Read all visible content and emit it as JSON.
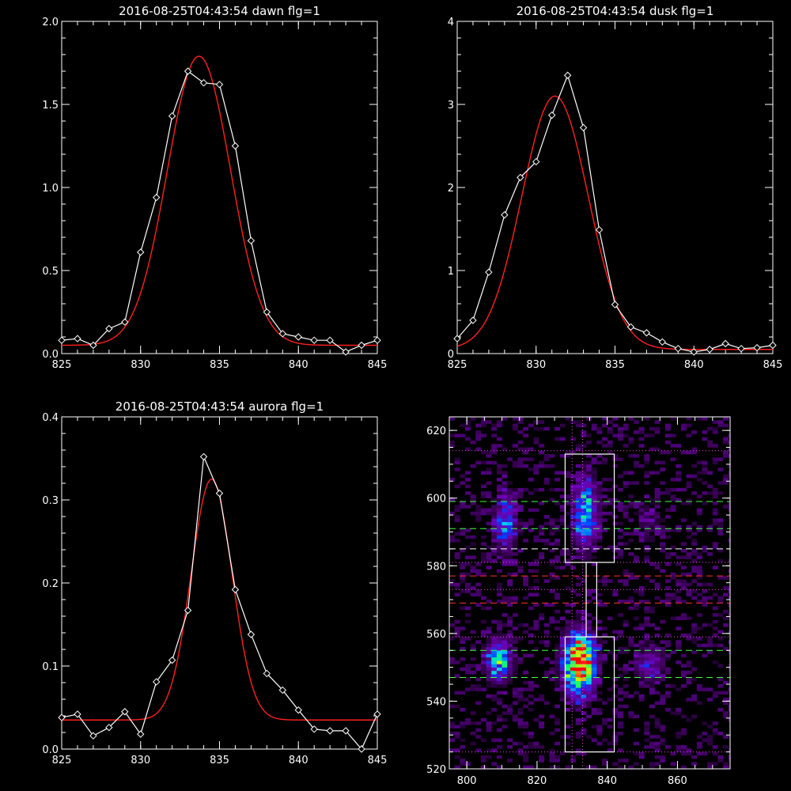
{
  "chart_data": [
    {
      "type": "line",
      "title": "2016-08-25T04:43:54 dawn flg=1",
      "xlim": [
        825,
        845
      ],
      "ylim": [
        0,
        2.0
      ],
      "xticks": [
        825,
        830,
        835,
        840,
        845
      ],
      "yticks": [
        0.0,
        0.5,
        1.0,
        1.5,
        2.0
      ],
      "ytick_labels": [
        "0.0",
        "0.5",
        "1.0",
        "1.5",
        "2.0"
      ],
      "series": [
        {
          "color": "#ffffff",
          "markers": "diamond",
          "x": [
            825,
            826,
            827,
            828,
            829,
            830,
            831,
            832,
            833,
            834,
            835,
            836,
            837,
            838,
            839,
            840,
            841,
            842,
            843,
            844,
            845
          ],
          "y": [
            0.08,
            0.09,
            0.05,
            0.15,
            0.19,
            0.61,
            0.94,
            1.43,
            1.7,
            1.63,
            1.62,
            1.25,
            0.68,
            0.25,
            0.12,
            0.1,
            0.08,
            0.08,
            0.01,
            0.05,
            0.08
          ]
        },
        {
          "color": "#ff2020",
          "markers": "none",
          "fit": {
            "baseline": 0.05,
            "amplitude": 1.74,
            "center": 833.7,
            "sigma": 2.0
          }
        }
      ]
    },
    {
      "type": "line",
      "title": "2016-08-25T04:43:54 dusk flg=1",
      "xlim": [
        825,
        845
      ],
      "ylim": [
        0,
        4
      ],
      "xticks": [
        825,
        830,
        835,
        840,
        845
      ],
      "yticks": [
        0,
        1,
        2,
        3,
        4
      ],
      "ytick_labels": [
        "0",
        "1",
        "2",
        "3",
        "4"
      ],
      "series": [
        {
          "color": "#ffffff",
          "markers": "diamond",
          "x": [
            825,
            826,
            827,
            828,
            829,
            830,
            831,
            832,
            833,
            834,
            835,
            836,
            837,
            838,
            839,
            840,
            841,
            842,
            843,
            844,
            845
          ],
          "y": [
            0.18,
            0.4,
            0.98,
            1.67,
            2.12,
            2.31,
            2.87,
            3.35,
            2.72,
            1.49,
            0.59,
            0.32,
            0.25,
            0.14,
            0.06,
            0.02,
            0.05,
            0.12,
            0.06,
            0.07,
            0.1
          ]
        },
        {
          "color": "#ff2020",
          "markers": "none",
          "fit": {
            "baseline": 0.05,
            "amplitude": 3.05,
            "center": 831.2,
            "sigma": 2.1
          }
        }
      ]
    },
    {
      "type": "line",
      "title": "2016-08-25T04:43:54 aurora flg=1",
      "xlim": [
        825,
        845
      ],
      "ylim": [
        0,
        0.4
      ],
      "xticks": [
        825,
        830,
        835,
        840,
        845
      ],
      "yticks": [
        0.0,
        0.1,
        0.2,
        0.3,
        0.4
      ],
      "ytick_labels": [
        "0.0",
        "0.1",
        "0.2",
        "0.3",
        "0.4"
      ],
      "series": [
        {
          "color": "#ffffff",
          "markers": "diamond",
          "x": [
            825,
            826,
            827,
            828,
            829,
            830,
            831,
            832,
            833,
            834,
            835,
            836,
            837,
            838,
            839,
            840,
            841,
            842,
            843,
            844,
            845
          ],
          "y": [
            0.038,
            0.042,
            0.016,
            0.026,
            0.045,
            0.018,
            0.081,
            0.107,
            0.167,
            0.352,
            0.308,
            0.192,
            0.138,
            0.091,
            0.071,
            0.047,
            0.024,
            0.022,
            0.022,
            0.0,
            0.042
          ]
        },
        {
          "color": "#ff2020",
          "markers": "none",
          "fit": {
            "baseline": 0.035,
            "amplitude": 0.29,
            "center": 834.5,
            "sigma": 1.3
          }
        }
      ]
    },
    {
      "type": "heatmap",
      "title": "",
      "xlim": [
        795,
        875
      ],
      "ylim": [
        520,
        624
      ],
      "xticks": [
        800,
        820,
        840,
        860
      ],
      "yticks": [
        520,
        540,
        560,
        580,
        600,
        620
      ],
      "blobs": [
        {
          "x": 832,
          "y": 551,
          "sx": 3.0,
          "sy": 6,
          "amp": 1.0
        },
        {
          "x": 833,
          "y": 554,
          "sx": 2.0,
          "sy": 3,
          "amp": 0.35
        },
        {
          "x": 809,
          "y": 552,
          "sx": 2.5,
          "sy": 4,
          "amp": 0.55
        },
        {
          "x": 834,
          "y": 596,
          "sx": 2.5,
          "sy": 7,
          "amp": 0.55
        },
        {
          "x": 811,
          "y": 593,
          "sx": 2.2,
          "sy": 6,
          "amp": 0.4
        },
        {
          "x": 852,
          "y": 551,
          "sx": 3.0,
          "sy": 4,
          "amp": 0.25
        },
        {
          "x": 852,
          "y": 593,
          "sx": 3.0,
          "sy": 5,
          "amp": 0.12
        }
      ],
      "boxes": [
        {
          "x0": 828,
          "x1": 842,
          "y0": 581,
          "y1": 613,
          "color": "#ffffff"
        },
        {
          "x0": 828,
          "x1": 842,
          "y0": 525,
          "y1": 559,
          "color": "#ffffff"
        },
        {
          "x0": 834,
          "x1": 837,
          "y0": 559,
          "y1": 581,
          "color": "#ffffff"
        }
      ],
      "hlines": [
        {
          "y": 614,
          "color": "#ff40ff",
          "style": "dotted"
        },
        {
          "y": 599,
          "color": "#40ff40",
          "style": "dashed"
        },
        {
          "y": 591,
          "color": "#40ff40",
          "style": "dashed"
        },
        {
          "y": 585,
          "color": "#ffffff",
          "style": "dashed"
        },
        {
          "y": 581,
          "color": "#ff40ff",
          "style": "dotted"
        },
        {
          "y": 577,
          "color": "#ff3030",
          "style": "dashed"
        },
        {
          "y": 573,
          "color": "#ff40ff",
          "style": "dotted"
        },
        {
          "y": 569,
          "color": "#ff3030",
          "style": "dashed"
        },
        {
          "y": 559,
          "color": "#ff40ff",
          "style": "dotted"
        },
        {
          "y": 555,
          "color": "#40ff40",
          "style": "dashed"
        },
        {
          "y": 547,
          "color": "#40ff40",
          "style": "dashed"
        },
        {
          "y": 525,
          "color": "#ff40ff",
          "style": "dotted"
        }
      ],
      "vlines": [
        {
          "x": 830,
          "color": "#ff40ff",
          "style": "dotted"
        },
        {
          "x": 833,
          "color": "#ff40ff",
          "style": "dotted"
        }
      ]
    }
  ]
}
